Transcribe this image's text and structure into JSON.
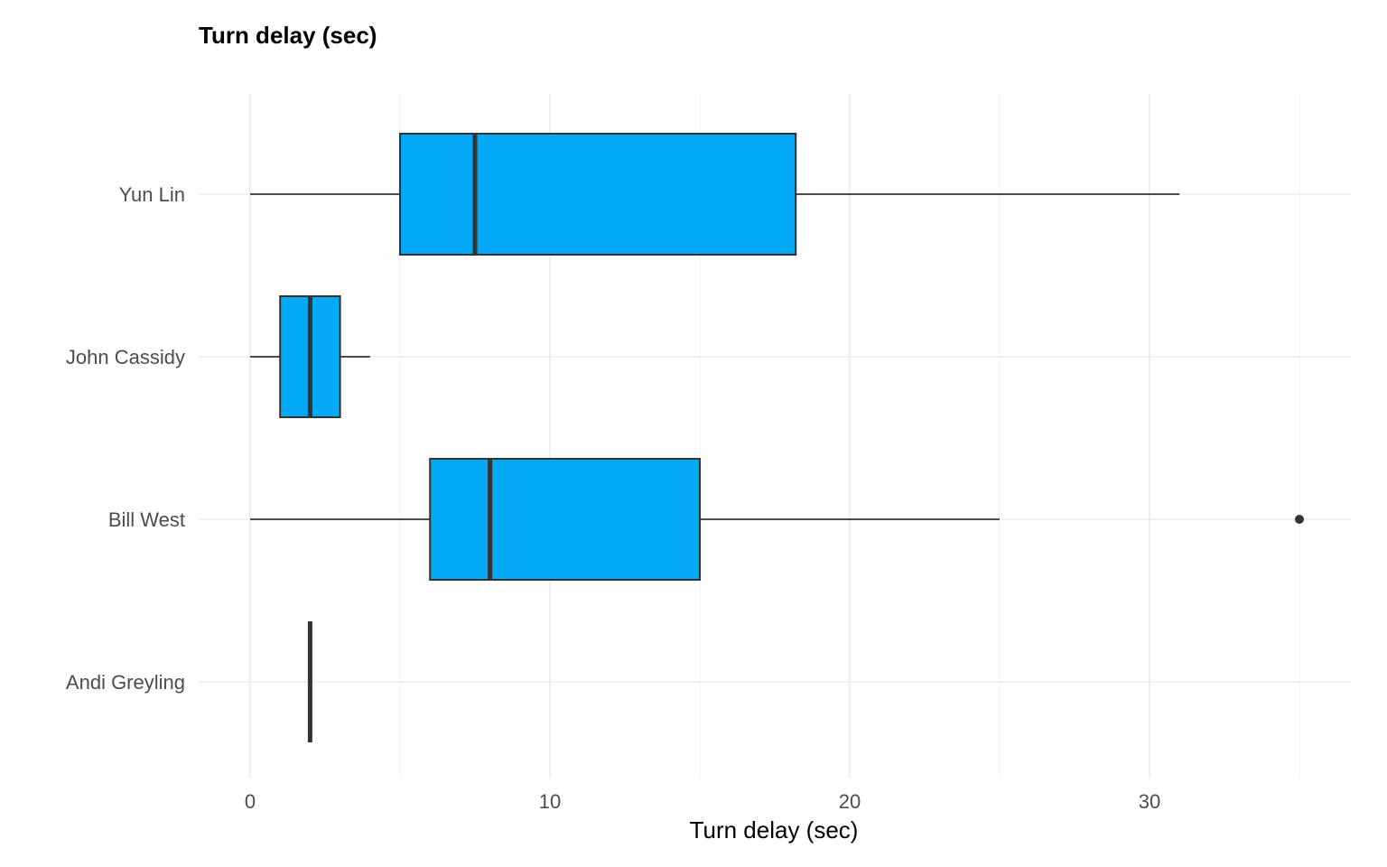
{
  "chart_data": {
    "type": "boxplot",
    "orientation": "horizontal",
    "title": "Turn delay (sec)",
    "xlabel": "Turn delay (sec)",
    "ylabel": "",
    "xlim": [
      -1.7,
      36.8
    ],
    "x_ticks": [
      0,
      10,
      20,
      30
    ],
    "x_tick_labels": [
      "0",
      "10",
      "20",
      "30"
    ],
    "x_minor_ticks": [
      5,
      15,
      25,
      35
    ],
    "categories": [
      "Yun Lin",
      "John Cassidy",
      "Bill West",
      "Andi Greyling"
    ],
    "series": [
      {
        "category": "Yun Lin",
        "min": 0,
        "q1": 5,
        "median": 7.5,
        "q3": 18.2,
        "max": 31,
        "outliers": []
      },
      {
        "category": "John Cassidy",
        "min": 0,
        "q1": 1,
        "median": 2,
        "q3": 3,
        "max": 4,
        "outliers": []
      },
      {
        "category": "Bill West",
        "min": 0,
        "q1": 6,
        "median": 8,
        "q3": 15,
        "max": 25,
        "outliers": [
          35
        ]
      },
      {
        "category": "Andi Greyling",
        "min": 2,
        "q1": 2,
        "median": 2,
        "q3": 2,
        "max": 2,
        "outliers": []
      }
    ],
    "box_fill": "#03a9f4",
    "line_color": "#333333",
    "grid": true,
    "legend": "none"
  }
}
